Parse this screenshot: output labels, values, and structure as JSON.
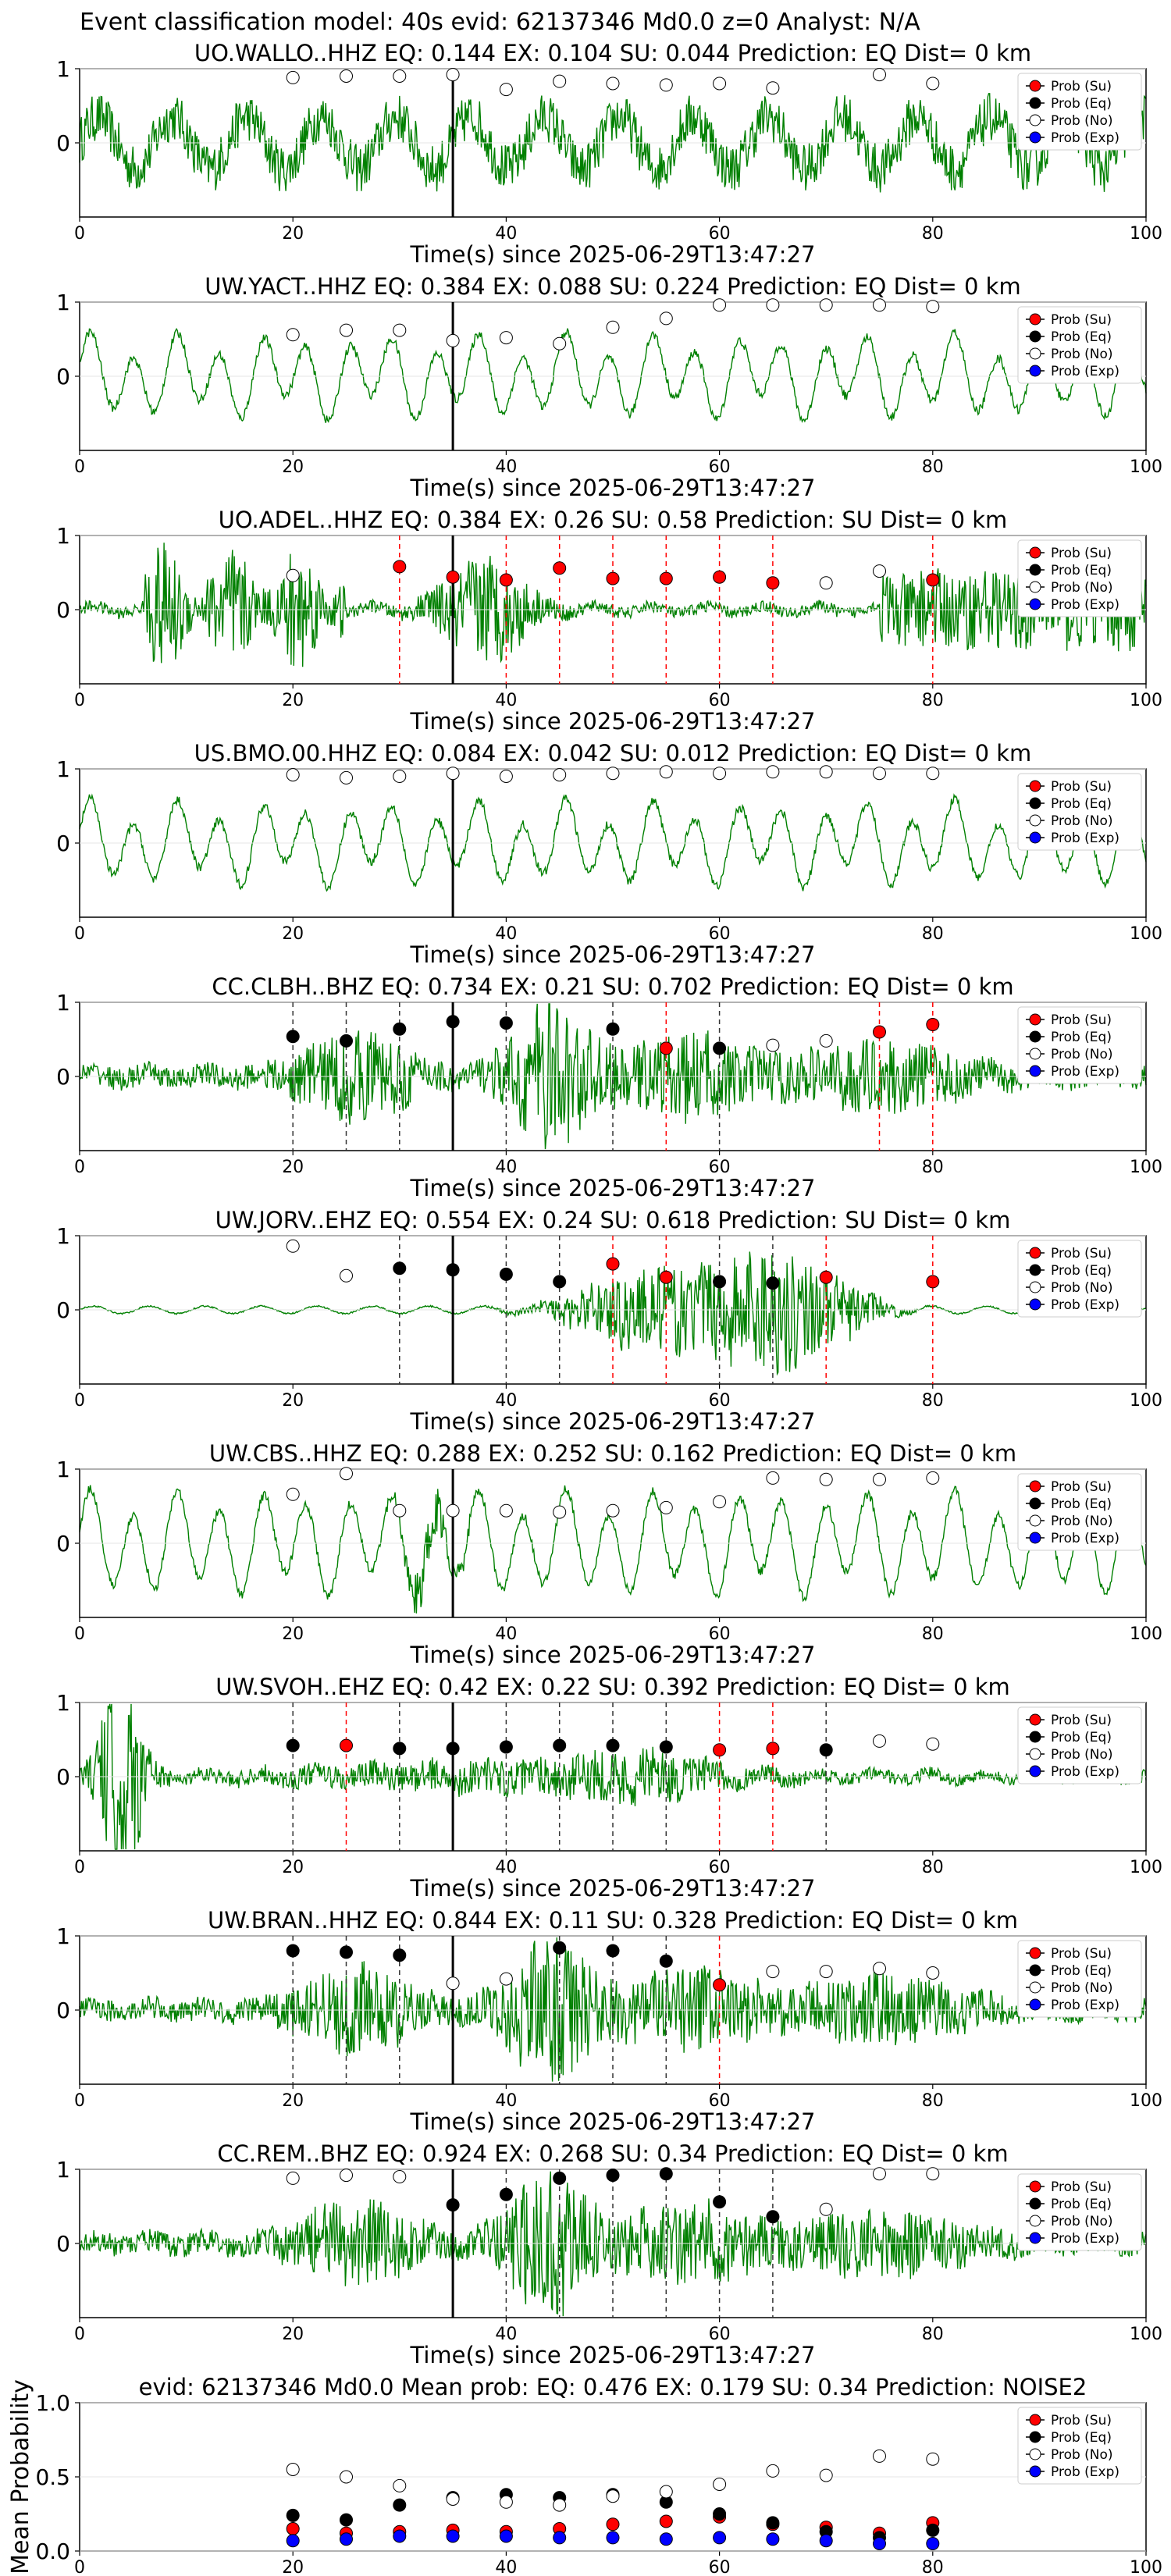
{
  "figure": {
    "title": "Event classification model: 40s evid: 62137346 Md0.0 z=0 Analyst: N/A",
    "legend": [
      "Prob (Su)",
      "Prob (Eq)",
      "Prob (No)",
      "Prob (Exp)"
    ],
    "colors": {
      "su": "#ff0000",
      "eq": "#000000",
      "no": "#ffffff",
      "exp": "#0000ff",
      "trace": "#008000",
      "su_line": "#ff0000",
      "eq_line": "#333333"
    }
  },
  "chart_data": [
    {
      "type": "line",
      "station": "UO.WALLO..HHZ",
      "title": "UO.WALLO..HHZ   EQ: 0.144  EX: 0.104  SU: 0.044   Prediction: EQ    Dist= 0 km",
      "xlabel": "Time(s) since 2025-06-29T13:47:27",
      "xlim": [
        0,
        100
      ],
      "xticks": [
        0,
        20,
        40,
        60,
        80,
        100
      ],
      "yticks": [
        0,
        1
      ],
      "ylim": [
        -1,
        1
      ],
      "event_time": 35,
      "trace_style": "noisy",
      "points": [
        {
          "x": 20,
          "c": "no",
          "y": 0.88
        },
        {
          "x": 25,
          "c": "no",
          "y": 0.9
        },
        {
          "x": 30,
          "c": "no",
          "y": 0.9
        },
        {
          "x": 35,
          "c": "no",
          "y": 0.92
        },
        {
          "x": 40,
          "c": "no",
          "y": 0.72
        },
        {
          "x": 45,
          "c": "no",
          "y": 0.83
        },
        {
          "x": 50,
          "c": "no",
          "y": 0.8
        },
        {
          "x": 55,
          "c": "no",
          "y": 0.78
        },
        {
          "x": 60,
          "c": "no",
          "y": 0.8
        },
        {
          "x": 65,
          "c": "no",
          "y": 0.74
        },
        {
          "x": 75,
          "c": "no",
          "y": 0.92
        },
        {
          "x": 80,
          "c": "no",
          "y": 0.8
        }
      ]
    },
    {
      "type": "line",
      "station": "UW.YACT..HHZ",
      "title": "UW.YACT..HHZ   EQ: 0.384  EX: 0.088  SU: 0.224   Prediction: EQ    Dist= 0 km",
      "xlabel": "Time(s) since 2025-06-29T13:47:27",
      "xlim": [
        0,
        100
      ],
      "xticks": [
        0,
        20,
        40,
        60,
        80,
        100
      ],
      "yticks": [
        0,
        1
      ],
      "ylim": [
        -1,
        1
      ],
      "event_time": 35,
      "trace_style": "wavy",
      "points": [
        {
          "x": 20,
          "c": "no",
          "y": 0.56
        },
        {
          "x": 25,
          "c": "no",
          "y": 0.62
        },
        {
          "x": 30,
          "c": "no",
          "y": 0.62
        },
        {
          "x": 35,
          "c": "no",
          "y": 0.48
        },
        {
          "x": 40,
          "c": "no",
          "y": 0.52
        },
        {
          "x": 45,
          "c": "no",
          "y": 0.44
        },
        {
          "x": 50,
          "c": "no",
          "y": 0.66
        },
        {
          "x": 55,
          "c": "no",
          "y": 0.78
        },
        {
          "x": 60,
          "c": "no",
          "y": 0.96
        },
        {
          "x": 65,
          "c": "no",
          "y": 0.96
        },
        {
          "x": 70,
          "c": "no",
          "y": 0.96
        },
        {
          "x": 75,
          "c": "no",
          "y": 0.96
        },
        {
          "x": 80,
          "c": "no",
          "y": 0.94
        }
      ]
    },
    {
      "type": "line",
      "station": "UO.ADEL..HHZ",
      "title": "UO.ADEL..HHZ   EQ: 0.384  EX: 0.26  SU: 0.58   Prediction: SU    Dist= 0 km",
      "xlabel": "Time(s) since 2025-06-29T13:47:27",
      "xlim": [
        0,
        100
      ],
      "xticks": [
        0,
        20,
        40,
        60,
        80,
        100
      ],
      "yticks": [
        0,
        1
      ],
      "ylim": [
        -1,
        1
      ],
      "event_time": 35,
      "trace_style": "burst-early",
      "points": [
        {
          "x": 20,
          "c": "no",
          "y": 0.46
        },
        {
          "x": 30,
          "c": "su",
          "y": 0.58
        },
        {
          "x": 35,
          "c": "su",
          "y": 0.44
        },
        {
          "x": 40,
          "c": "su",
          "y": 0.4
        },
        {
          "x": 45,
          "c": "su",
          "y": 0.56
        },
        {
          "x": 50,
          "c": "su",
          "y": 0.42
        },
        {
          "x": 55,
          "c": "su",
          "y": 0.42
        },
        {
          "x": 60,
          "c": "su",
          "y": 0.44
        },
        {
          "x": 65,
          "c": "su",
          "y": 0.36
        },
        {
          "x": 70,
          "c": "no",
          "y": 0.36
        },
        {
          "x": 75,
          "c": "no",
          "y": 0.52
        },
        {
          "x": 80,
          "c": "su",
          "y": 0.4
        }
      ]
    },
    {
      "type": "line",
      "station": "US.BMO.00.HHZ",
      "title": "US.BMO.00.HHZ   EQ: 0.084  EX: 0.042  SU: 0.012   Prediction: EQ    Dist= 0 km",
      "xlabel": "Time(s) since 2025-06-29T13:47:27",
      "xlim": [
        0,
        100
      ],
      "xticks": [
        0,
        20,
        40,
        60,
        80,
        100
      ],
      "yticks": [
        0,
        1
      ],
      "ylim": [
        -1,
        1
      ],
      "event_time": 35,
      "trace_style": "wavy",
      "points": [
        {
          "x": 20,
          "c": "no",
          "y": 0.92
        },
        {
          "x": 25,
          "c": "no",
          "y": 0.88
        },
        {
          "x": 30,
          "c": "no",
          "y": 0.9
        },
        {
          "x": 35,
          "c": "no",
          "y": 0.94
        },
        {
          "x": 40,
          "c": "no",
          "y": 0.9
        },
        {
          "x": 45,
          "c": "no",
          "y": 0.92
        },
        {
          "x": 50,
          "c": "no",
          "y": 0.94
        },
        {
          "x": 55,
          "c": "no",
          "y": 0.96
        },
        {
          "x": 60,
          "c": "no",
          "y": 0.94
        },
        {
          "x": 65,
          "c": "no",
          "y": 0.96
        },
        {
          "x": 70,
          "c": "no",
          "y": 0.96
        },
        {
          "x": 75,
          "c": "no",
          "y": 0.94
        },
        {
          "x": 80,
          "c": "no",
          "y": 0.94
        }
      ]
    },
    {
      "type": "line",
      "station": "CC.CLBH..BHZ",
      "title": "CC.CLBH..BHZ   EQ: 0.734  EX: 0.21  SU: 0.702   Prediction: EQ    Dist= 0 km",
      "xlabel": "Time(s) since 2025-06-29T13:47:27",
      "xlim": [
        0,
        100
      ],
      "xticks": [
        0,
        20,
        40,
        60,
        80,
        100
      ],
      "yticks": [
        0,
        1
      ],
      "ylim": [
        -1,
        1
      ],
      "event_time": 35,
      "trace_style": "bursty",
      "points": [
        {
          "x": 20,
          "c": "eq",
          "y": 0.54
        },
        {
          "x": 25,
          "c": "eq",
          "y": 0.48
        },
        {
          "x": 30,
          "c": "eq",
          "y": 0.64
        },
        {
          "x": 35,
          "c": "eq",
          "y": 0.74
        },
        {
          "x": 40,
          "c": "eq",
          "y": 0.72
        },
        {
          "x": 50,
          "c": "eq",
          "y": 0.64
        },
        {
          "x": 55,
          "c": "su",
          "y": 0.38
        },
        {
          "x": 60,
          "c": "eq",
          "y": 0.38
        },
        {
          "x": 65,
          "c": "no",
          "y": 0.42
        },
        {
          "x": 70,
          "c": "no",
          "y": 0.48
        },
        {
          "x": 75,
          "c": "su",
          "y": 0.6
        },
        {
          "x": 80,
          "c": "su",
          "y": 0.7
        }
      ]
    },
    {
      "type": "line",
      "station": "UW.JORV..EHZ",
      "title": "UW.JORV..EHZ   EQ: 0.554  EX: 0.24  SU: 0.618   Prediction: SU    Dist= 0 km",
      "xlabel": "Time(s) since 2025-06-29T13:47:27",
      "xlim": [
        0,
        100
      ],
      "xticks": [
        0,
        20,
        40,
        60,
        80,
        100
      ],
      "yticks": [
        0,
        1
      ],
      "ylim": [
        -1,
        1
      ],
      "event_time": 35,
      "trace_style": "quiet-burst",
      "points": [
        {
          "x": 20,
          "c": "no",
          "y": 0.86
        },
        {
          "x": 25,
          "c": "no",
          "y": 0.46
        },
        {
          "x": 30,
          "c": "eq",
          "y": 0.56
        },
        {
          "x": 35,
          "c": "eq",
          "y": 0.54
        },
        {
          "x": 40,
          "c": "eq",
          "y": 0.48
        },
        {
          "x": 45,
          "c": "eq",
          "y": 0.38
        },
        {
          "x": 50,
          "c": "su",
          "y": 0.62
        },
        {
          "x": 55,
          "c": "su",
          "y": 0.44
        },
        {
          "x": 60,
          "c": "eq",
          "y": 0.38
        },
        {
          "x": 65,
          "c": "eq",
          "y": 0.36
        },
        {
          "x": 70,
          "c": "su",
          "y": 0.44
        },
        {
          "x": 80,
          "c": "su",
          "y": 0.38
        }
      ]
    },
    {
      "type": "line",
      "station": "UW.CBS..HHZ",
      "title": "UW.CBS..HHZ   EQ: 0.288  EX: 0.252  SU: 0.162   Prediction: EQ    Dist= 0 km",
      "xlabel": "Time(s) since 2025-06-29T13:47:27",
      "xlim": [
        0,
        100
      ],
      "xticks": [
        0,
        20,
        40,
        60,
        80,
        100
      ],
      "yticks": [
        0,
        1
      ],
      "ylim": [
        -1,
        1
      ],
      "event_time": 35,
      "trace_style": "big-wavy",
      "points": [
        {
          "x": 20,
          "c": "no",
          "y": 0.66
        },
        {
          "x": 25,
          "c": "no",
          "y": 0.94
        },
        {
          "x": 30,
          "c": "no",
          "y": 0.44
        },
        {
          "x": 35,
          "c": "no",
          "y": 0.44
        },
        {
          "x": 40,
          "c": "no",
          "y": 0.44
        },
        {
          "x": 45,
          "c": "no",
          "y": 0.42
        },
        {
          "x": 50,
          "c": "no",
          "y": 0.44
        },
        {
          "x": 55,
          "c": "no",
          "y": 0.48
        },
        {
          "x": 60,
          "c": "no",
          "y": 0.56
        },
        {
          "x": 65,
          "c": "no",
          "y": 0.88
        },
        {
          "x": 70,
          "c": "no",
          "y": 0.86
        },
        {
          "x": 75,
          "c": "no",
          "y": 0.86
        },
        {
          "x": 80,
          "c": "no",
          "y": 0.88
        }
      ]
    },
    {
      "type": "line",
      "station": "UW.SVOH..EHZ",
      "title": "UW.SVOH..EHZ   EQ: 0.42  EX: 0.22  SU: 0.392   Prediction: EQ    Dist= 0 km",
      "xlabel": "Time(s) since 2025-06-29T13:47:27",
      "xlim": [
        0,
        100
      ],
      "xticks": [
        0,
        20,
        40,
        60,
        80,
        100
      ],
      "yticks": [
        0,
        1
      ],
      "ylim": [
        -1,
        1
      ],
      "event_time": 35,
      "trace_style": "spike-early",
      "points": [
        {
          "x": 20,
          "c": "eq",
          "y": 0.42
        },
        {
          "x": 25,
          "c": "su",
          "y": 0.42
        },
        {
          "x": 30,
          "c": "eq",
          "y": 0.38
        },
        {
          "x": 35,
          "c": "eq",
          "y": 0.38
        },
        {
          "x": 40,
          "c": "eq",
          "y": 0.4
        },
        {
          "x": 45,
          "c": "eq",
          "y": 0.42
        },
        {
          "x": 50,
          "c": "eq",
          "y": 0.42
        },
        {
          "x": 55,
          "c": "eq",
          "y": 0.4
        },
        {
          "x": 60,
          "c": "su",
          "y": 0.36
        },
        {
          "x": 65,
          "c": "su",
          "y": 0.38
        },
        {
          "x": 70,
          "c": "eq",
          "y": 0.36
        },
        {
          "x": 75,
          "c": "no",
          "y": 0.48
        },
        {
          "x": 80,
          "c": "no",
          "y": 0.44
        }
      ]
    },
    {
      "type": "line",
      "station": "UW.BRAN..HHZ",
      "title": "UW.BRAN..HHZ   EQ: 0.844  EX: 0.11  SU: 0.328   Prediction: EQ    Dist= 0 km",
      "xlabel": "Time(s) since 2025-06-29T13:47:27",
      "xlim": [
        0,
        100
      ],
      "xticks": [
        0,
        20,
        40,
        60,
        80,
        100
      ],
      "yticks": [
        0,
        1
      ],
      "ylim": [
        -1,
        1
      ],
      "event_time": 35,
      "trace_style": "bursty",
      "points": [
        {
          "x": 20,
          "c": "eq",
          "y": 0.8
        },
        {
          "x": 25,
          "c": "eq",
          "y": 0.78
        },
        {
          "x": 30,
          "c": "eq",
          "y": 0.74
        },
        {
          "x": 35,
          "c": "no",
          "y": 0.36
        },
        {
          "x": 40,
          "c": "no",
          "y": 0.42
        },
        {
          "x": 45,
          "c": "eq",
          "y": 0.84
        },
        {
          "x": 50,
          "c": "eq",
          "y": 0.8
        },
        {
          "x": 55,
          "c": "eq",
          "y": 0.66
        },
        {
          "x": 60,
          "c": "su",
          "y": 0.34
        },
        {
          "x": 65,
          "c": "no",
          "y": 0.52
        },
        {
          "x": 70,
          "c": "no",
          "y": 0.52
        },
        {
          "x": 75,
          "c": "no",
          "y": 0.56
        },
        {
          "x": 80,
          "c": "no",
          "y": 0.5
        }
      ]
    },
    {
      "type": "line",
      "station": "CC.REM..BHZ",
      "title": "CC.REM..BHZ   EQ: 0.924  EX: 0.268  SU: 0.34   Prediction: EQ    Dist= 0 km",
      "xlabel": "Time(s) since 2025-06-29T13:47:27",
      "xlim": [
        0,
        100
      ],
      "xticks": [
        0,
        20,
        40,
        60,
        80,
        100
      ],
      "yticks": [
        0,
        1
      ],
      "ylim": [
        -1,
        1
      ],
      "event_time": 35,
      "trace_style": "bursty",
      "points": [
        {
          "x": 20,
          "c": "no",
          "y": 0.88
        },
        {
          "x": 25,
          "c": "no",
          "y": 0.92
        },
        {
          "x": 30,
          "c": "no",
          "y": 0.9
        },
        {
          "x": 35,
          "c": "eq",
          "y": 0.52
        },
        {
          "x": 40,
          "c": "eq",
          "y": 0.66
        },
        {
          "x": 45,
          "c": "eq",
          "y": 0.88
        },
        {
          "x": 50,
          "c": "eq",
          "y": 0.92
        },
        {
          "x": 55,
          "c": "eq",
          "y": 0.94
        },
        {
          "x": 60,
          "c": "eq",
          "y": 0.56
        },
        {
          "x": 65,
          "c": "eq",
          "y": 0.36
        },
        {
          "x": 70,
          "c": "no",
          "y": 0.46
        },
        {
          "x": 75,
          "c": "no",
          "y": 0.94
        },
        {
          "x": 80,
          "c": "no",
          "y": 0.94
        }
      ]
    },
    {
      "type": "scatter",
      "title": "evid: 62137346  Md0.0   Mean prob:   EQ: 0.476  EX: 0.179  SU: 0.34   Prediction: NOISE2",
      "ylabel": "Mean Probability",
      "xlim": [
        0,
        100
      ],
      "ylim": [
        0,
        1
      ],
      "xticks": [
        0,
        20,
        40,
        60,
        80,
        100
      ],
      "yticks": [
        0.0,
        0.5,
        1.0
      ],
      "x": [
        20,
        25,
        30,
        35,
        40,
        45,
        50,
        55,
        60,
        65,
        70,
        75,
        80
      ],
      "series": [
        {
          "name": "Prob (Su)",
          "values": [
            0.15,
            0.12,
            0.13,
            0.14,
            0.13,
            0.15,
            0.18,
            0.2,
            0.23,
            0.18,
            0.16,
            0.12,
            0.19
          ]
        },
        {
          "name": "Prob (Eq)",
          "values": [
            0.24,
            0.21,
            0.31,
            0.36,
            0.38,
            0.36,
            0.38,
            0.33,
            0.25,
            0.19,
            0.13,
            0.09,
            0.14
          ]
        },
        {
          "name": "Prob (No)",
          "values": [
            0.55,
            0.5,
            0.44,
            0.35,
            0.33,
            0.31,
            0.37,
            0.4,
            0.45,
            0.54,
            0.51,
            0.64,
            0.62
          ]
        },
        {
          "name": "Prob (Exp)",
          "values": [
            0.07,
            0.08,
            0.1,
            0.1,
            0.1,
            0.09,
            0.09,
            0.08,
            0.09,
            0.08,
            0.07,
            0.05,
            0.05
          ]
        }
      ]
    }
  ]
}
